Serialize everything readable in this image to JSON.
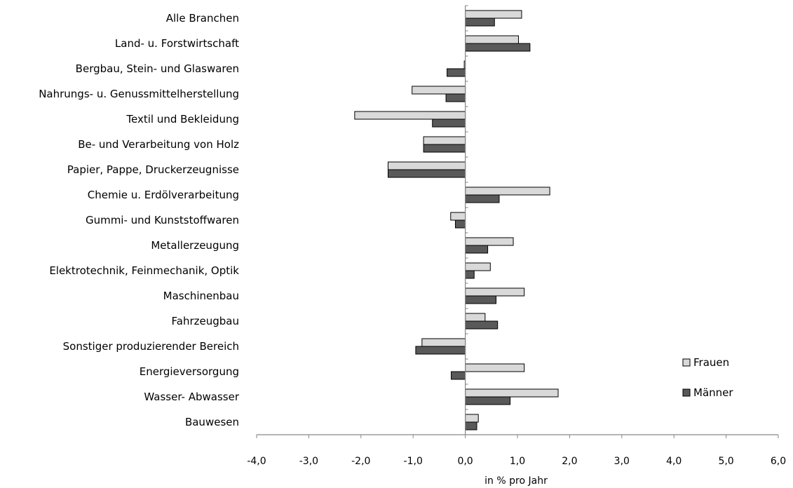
{
  "chart_data": {
    "type": "bar",
    "orientation": "horizontal",
    "categories": [
      "Alle Branchen",
      "Land- u. Forstwirtschaft",
      "Bergbau, Stein- und Glaswaren",
      "Nahrungs- u. Genussmittelherstellung",
      "Textil und Bekleidung",
      "Be- und Verarbeitung von Holz",
      "Papier, Pappe,  Druckerzeugnisse",
      "Chemie u. Erdölverarbeitung",
      "Gummi- und Kunststoffwaren",
      "Metallerzeugung",
      "Elektrotechnik, Feinmechanik, Optik",
      "Maschinenbau",
      "Fahrzeugbau",
      "Sonstiger produzierender Bereich",
      "Energieversorgung",
      "Wasser- Abwasser",
      "Bauwesen"
    ],
    "series": [
      {
        "name": "Frauen",
        "color": "#d9d9d9",
        "values": [
          1.08,
          1.02,
          -0.02,
          -1.02,
          -2.12,
          -0.8,
          -1.48,
          1.62,
          -0.28,
          0.92,
          0.48,
          1.13,
          0.38,
          -0.83,
          1.13,
          1.78,
          0.25
        ]
      },
      {
        "name": "Männer",
        "color": "#595959",
        "values": [
          0.56,
          1.24,
          -0.35,
          -0.37,
          -0.63,
          -0.8,
          -1.48,
          0.65,
          -0.19,
          0.43,
          0.17,
          0.59,
          0.62,
          -0.95,
          -0.27,
          0.86,
          0.22
        ]
      }
    ],
    "xlim": [
      -4.0,
      6.0
    ],
    "xticks": [
      "-4,0",
      "-3,0",
      "-2,0",
      "-1,0",
      "0,0",
      "1,0",
      "2,0",
      "3,0",
      "4,0",
      "5,0",
      "6,0"
    ],
    "xlabel": "in % pro Jahr",
    "title": "",
    "ylabel": "",
    "grid": false,
    "legend_position": "right"
  }
}
